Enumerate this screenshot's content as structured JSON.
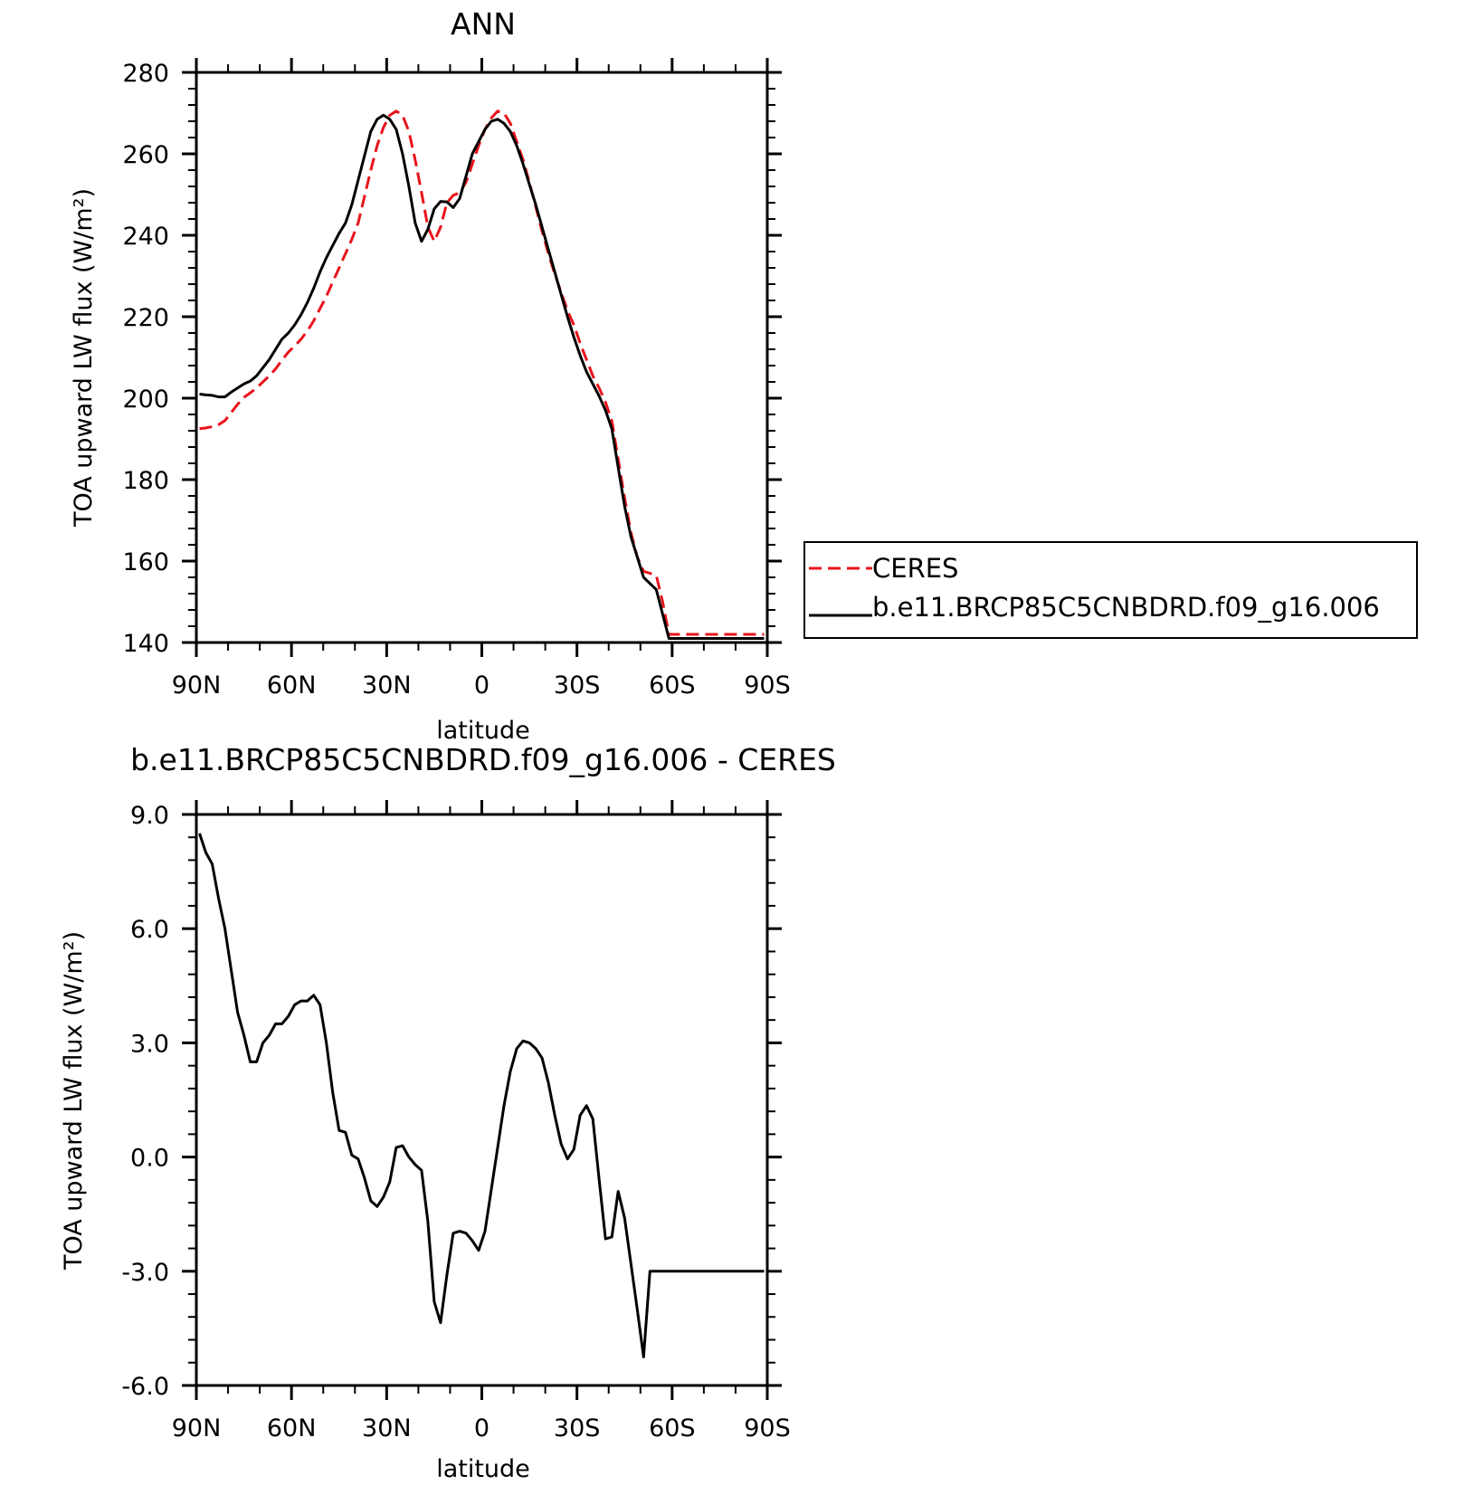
{
  "chart_data": [
    {
      "type": "line",
      "title": "ANN",
      "xlabel": "latitude",
      "ylabel": "TOA upward LW flux (W/m²)",
      "xlim": [
        90,
        -90
      ],
      "ylim": [
        140,
        280
      ],
      "xticks": [
        90,
        60,
        30,
        0,
        -30,
        -60,
        -90
      ],
      "xtick_labels": [
        "90N",
        "60N",
        "30N",
        "0",
        "30S",
        "60S",
        "90S"
      ],
      "yticks": [
        140,
        160,
        180,
        200,
        220,
        240,
        260,
        280
      ],
      "ytick_labels": [
        "140",
        "160",
        "180",
        "200",
        "220",
        "240",
        "260",
        "280"
      ],
      "legend_position": "right",
      "series": [
        {
          "name": "CERES",
          "color": "#e8141c",
          "dash": "dashed",
          "x": [
            89,
            87,
            85,
            83,
            81,
            79,
            77,
            75,
            73,
            71,
            69,
            67,
            65,
            63,
            61,
            59,
            57,
            55,
            53,
            51,
            49,
            47,
            45,
            43,
            41,
            39,
            37,
            35,
            33,
            31,
            29,
            27,
            25,
            23,
            21,
            19,
            17,
            15,
            13,
            11,
            9,
            7,
            5,
            3,
            1,
            -1,
            -3,
            -5,
            -7,
            -9,
            -11,
            -13,
            -15,
            -17,
            -19,
            -21,
            -23,
            -25,
            -27,
            -29,
            -31,
            -33,
            -35,
            -37,
            -39,
            -41,
            -43,
            -45,
            -47,
            -49,
            -51,
            -53,
            -55,
            -57,
            -59,
            -61,
            -63,
            -65,
            -67,
            -69,
            -71,
            -73,
            -75,
            -77,
            -79,
            -81,
            -83,
            -85,
            -87,
            -89
          ],
          "values": [
            192.5,
            192.7,
            193.0,
            193.5,
            194.5,
            196.5,
            198.5,
            200.2,
            201.3,
            202.5,
            204.0,
            205.5,
            207.2,
            209.3,
            211.3,
            212.8,
            214.5,
            216.5,
            219.0,
            222.0,
            225.0,
            228.5,
            232.0,
            235.5,
            239.0,
            243.0,
            249.5,
            256.0,
            262.0,
            266.5,
            269.5,
            270.5,
            269.5,
            265.5,
            258.5,
            250.5,
            242.0,
            238.5,
            242.0,
            248.0,
            249.8,
            250.5,
            253.0,
            257.5,
            262.0,
            266.0,
            268.8,
            270.5,
            270.0,
            267.5,
            263.0,
            258.5,
            253.0,
            247.0,
            241.0,
            235.5,
            230.5,
            226.0,
            221.5,
            218.0,
            213.5,
            209.5,
            205.5,
            202.5,
            199.0,
            194.5,
            185.0,
            175.5,
            167.0,
            161.0,
            157.5,
            157.0,
            156.5,
            150.0,
            142.0,
            142.0,
            142.0,
            142.0,
            142.0,
            142.0,
            142.0,
            142.0,
            142.0,
            142.0,
            142.0,
            142.0,
            142.0,
            142.0,
            142.0,
            142.0
          ]
        },
        {
          "name": "b.e11.BRCP85C5CNBDRD.f09_g16.006",
          "color": "#000000",
          "dash": "solid",
          "x": [
            89,
            87,
            85,
            83,
            81,
            79,
            77,
            75,
            73,
            71,
            69,
            67,
            65,
            63,
            61,
            59,
            57,
            55,
            53,
            51,
            49,
            47,
            45,
            43,
            41,
            39,
            37,
            35,
            33,
            31,
            29,
            27,
            25,
            23,
            21,
            19,
            17,
            15,
            13,
            11,
            9,
            7,
            5,
            3,
            1,
            -1,
            -3,
            -5,
            -7,
            -9,
            -11,
            -13,
            -15,
            -17,
            -19,
            -21,
            -23,
            -25,
            -27,
            -29,
            -31,
            -33,
            -35,
            -37,
            -39,
            -41,
            -43,
            -45,
            -47,
            -49,
            -51,
            -53,
            -55,
            -57,
            -59,
            -61,
            -63,
            -65,
            -67,
            -69,
            -71,
            -73,
            -75,
            -77,
            -79,
            -81,
            -83,
            -85,
            -87,
            -89
          ],
          "values": [
            201.0,
            200.8,
            200.7,
            200.3,
            200.3,
            201.5,
            202.5,
            203.5,
            204.2,
            205.5,
            207.5,
            209.5,
            212.0,
            214.5,
            216.0,
            218.0,
            220.5,
            223.5,
            227.0,
            231.0,
            234.5,
            237.5,
            240.5,
            243.0,
            247.5,
            253.5,
            259.5,
            265.5,
            268.5,
            269.5,
            268.5,
            266.0,
            260.0,
            252.0,
            243.0,
            238.5,
            241.5,
            246.5,
            248.3,
            248.2,
            246.8,
            249.0,
            254.5,
            260.0,
            263.0,
            266.0,
            268.0,
            268.5,
            267.5,
            265.5,
            262.0,
            257.5,
            252.5,
            247.5,
            242.0,
            236.5,
            231.0,
            225.5,
            220.0,
            215.0,
            210.5,
            206.5,
            203.5,
            200.5,
            197.0,
            192.5,
            183.0,
            173.5,
            166.0,
            161.0,
            156.0,
            154.5,
            153.0,
            147.0,
            141.0,
            141.0,
            141.0,
            141.0,
            141.0,
            141.0,
            141.0,
            141.0,
            141.0,
            141.0,
            141.0,
            141.0,
            141.0,
            141.0,
            141.0,
            141.0
          ]
        }
      ]
    },
    {
      "type": "line",
      "title": "b.e11.BRCP85C5CNBDRD.f09_g16.006 - CERES",
      "xlabel": "latitude",
      "ylabel": "TOA upward LW flux (W/m²)",
      "xlim": [
        90,
        -90
      ],
      "ylim": [
        -6.0,
        9.0
      ],
      "xticks": [
        90,
        60,
        30,
        0,
        -30,
        -60,
        -90
      ],
      "xtick_labels": [
        "90N",
        "60N",
        "30N",
        "0",
        "30S",
        "60S",
        "90S"
      ],
      "yticks": [
        -6.0,
        -3.0,
        0.0,
        3.0,
        6.0,
        9.0
      ],
      "ytick_labels": [
        "-6.0",
        "-3.0",
        "0.0",
        "3.0",
        "6.0",
        "9.0"
      ],
      "series": [
        {
          "color": "#000000",
          "dash": "solid",
          "x": [
            89,
            87,
            85,
            83,
            81,
            79,
            77,
            75,
            73,
            71,
            69,
            67,
            65,
            63,
            61,
            59,
            57,
            55,
            53,
            51,
            49,
            47,
            45,
            43,
            41,
            39,
            37,
            35,
            33,
            31,
            29,
            27,
            25,
            23,
            21,
            19,
            17,
            15,
            13,
            11,
            9,
            7,
            5,
            3,
            1,
            -1,
            -3,
            -5,
            -7,
            -9,
            -11,
            -13,
            -15,
            -17,
            -19,
            -21,
            -23,
            -25,
            -27,
            -29,
            -31,
            -33,
            -35,
            -37,
            -39,
            -41,
            -43,
            -45,
            -47,
            -49,
            -51,
            -53,
            -55,
            -57,
            -59,
            -61,
            -63,
            -65,
            -67,
            -69,
            -71,
            -73,
            -75,
            -77,
            -79,
            -81,
            -83,
            -85,
            -87,
            -89
          ],
          "values": [
            8.5,
            8.0,
            7.7,
            6.8,
            6.0,
            4.9,
            3.8,
            3.2,
            2.5,
            2.5,
            3.0,
            3.2,
            3.5,
            3.5,
            3.7,
            4.0,
            4.1,
            4.1,
            4.25,
            4.0,
            3.0,
            1.7,
            0.7,
            0.65,
            0.05,
            -0.05,
            -0.55,
            -1.15,
            -1.3,
            -1.05,
            -0.65,
            0.25,
            0.3,
            0.0,
            -0.2,
            -0.35,
            -1.7,
            -3.8,
            -4.35,
            -3.1,
            -2.0,
            -1.95,
            -2.0,
            -2.2,
            -2.45,
            -1.95,
            -0.85,
            0.25,
            1.35,
            2.25,
            2.85,
            3.05,
            3.0,
            2.85,
            2.6,
            1.95,
            1.1,
            0.35,
            -0.05,
            0.2,
            1.1,
            1.35,
            1.0,
            -0.6,
            -2.15,
            -2.1,
            -0.9,
            -1.6,
            -2.8,
            -4.0,
            -5.25,
            -3.0,
            -3.0,
            -3.0,
            -3.0,
            -3.0,
            -3.0,
            -3.0,
            -3.0,
            -3.0,
            -3.0,
            -3.0,
            -3.0,
            -3.0,
            -3.0,
            -3.0,
            -3.0,
            -3.0,
            -3.0,
            -3.0
          ]
        }
      ]
    }
  ]
}
